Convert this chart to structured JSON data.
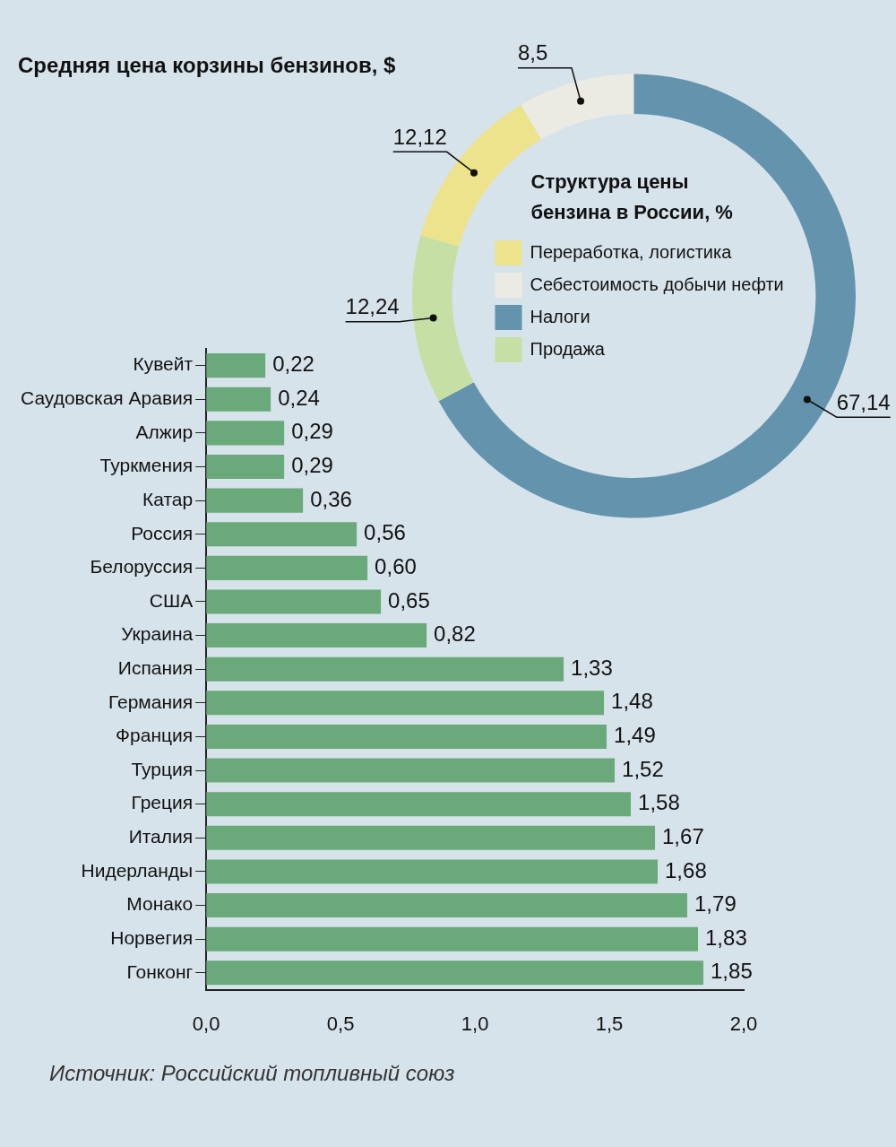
{
  "chart_data": [
    {
      "type": "bar",
      "orientation": "horizontal",
      "title": "Средняя цена корзины бензинов, $",
      "categories": [
        "Кувейт",
        "Саудовская Аравия",
        "Алжир",
        "Туркмения",
        "Катар",
        "Россия",
        "Белоруссия",
        "США",
        "Украина",
        "Испания",
        "Германия",
        "Франция",
        "Турция",
        "Греция",
        "Италия",
        "Нидерланды",
        "Монако",
        "Норвегия",
        "Гонконг"
      ],
      "values": [
        0.22,
        0.24,
        0.29,
        0.29,
        0.36,
        0.56,
        0.6,
        0.65,
        0.82,
        1.33,
        1.48,
        1.49,
        1.52,
        1.58,
        1.67,
        1.68,
        1.79,
        1.83,
        1.85
      ],
      "value_labels": [
        "0,22",
        "0,24",
        "0,29",
        "0,29",
        "0,36",
        "0,56",
        "0,60",
        "0,65",
        "0,82",
        "1,33",
        "1,48",
        "1,49",
        "1,52",
        "1,58",
        "1,67",
        "1,68",
        "1,79",
        "1,83",
        "1,85"
      ],
      "color": "#6aaa7a",
      "xlim": [
        0,
        2
      ],
      "xticks": [
        {
          "value": 0,
          "label": "0,0"
        },
        {
          "value": 0.5,
          "label": "0,5"
        },
        {
          "value": 1,
          "label": "1,0"
        },
        {
          "value": 1.5,
          "label": "1,5"
        },
        {
          "value": 2,
          "label": "2,0"
        }
      ],
      "grid": false,
      "annotations": [
        "Источник: Российский топливный союз"
      ]
    },
    {
      "type": "donut",
      "title": "Структура цены бензина в России, %",
      "categories": [
        "Переработка, логистика",
        "Себестоимость добычи нефти",
        "Налоги",
        "Продажа"
      ],
      "values": [
        12.12,
        8.5,
        67.14,
        12.24
      ],
      "value_labels": [
        "12,12",
        "8,5",
        "67,14",
        "12,24"
      ],
      "colors": [
        "#ede38c",
        "#ecebe3",
        "#6393ad",
        "#c5dfa5"
      ],
      "legend": "right"
    }
  ]
}
